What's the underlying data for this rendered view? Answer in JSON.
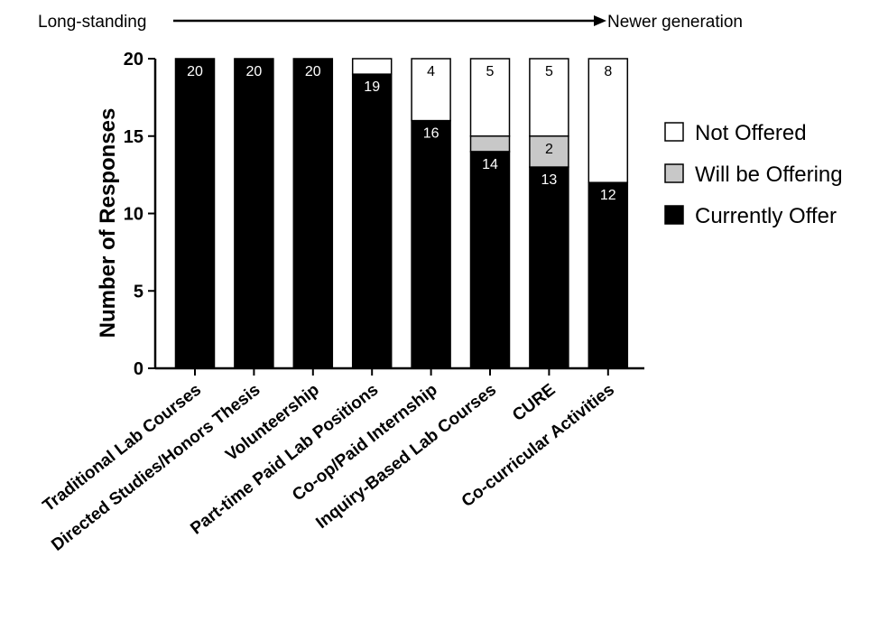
{
  "chart_data": {
    "type": "bar",
    "stacked": true,
    "timeline": {
      "left_label": "Long-standing",
      "right_label": "Newer generation"
    },
    "ylabel": "Number of Responses",
    "xlabel": "",
    "ylim": [
      0,
      20
    ],
    "yticks": [
      0,
      5,
      10,
      15,
      20
    ],
    "categories": [
      "Traditional Lab Courses",
      "Directed Studies/Honors Thesis",
      "Volunteership",
      "Part-time Paid Lab Positions",
      "Co-op/Paid Internship",
      "Inquiry-Based Lab Courses",
      "CURE",
      "Co-curricular Activities"
    ],
    "series": [
      {
        "name": "Currently Offer",
        "color": "#000000",
        "values": [
          20,
          20,
          20,
          19,
          16,
          14,
          13,
          12
        ],
        "labels": [
          "20",
          "20",
          "20",
          "19",
          "16",
          "14",
          "13",
          "12"
        ]
      },
      {
        "name": "Will be Offering",
        "color": "#c8c8c8",
        "values": [
          0,
          0,
          0,
          0,
          0,
          1,
          2,
          0
        ],
        "labels": [
          "",
          "",
          "",
          "",
          "",
          "",
          "2",
          ""
        ]
      },
      {
        "name": "Not Offered",
        "color": "#ffffff",
        "values": [
          0,
          0,
          0,
          1,
          4,
          5,
          5,
          8
        ],
        "labels": [
          "",
          "",
          "",
          "",
          "4",
          "5",
          "5",
          "8"
        ]
      }
    ],
    "legend": {
      "placement": "right",
      "order": [
        "Not Offered",
        "Will be Offering",
        "Currently Offer"
      ]
    }
  }
}
